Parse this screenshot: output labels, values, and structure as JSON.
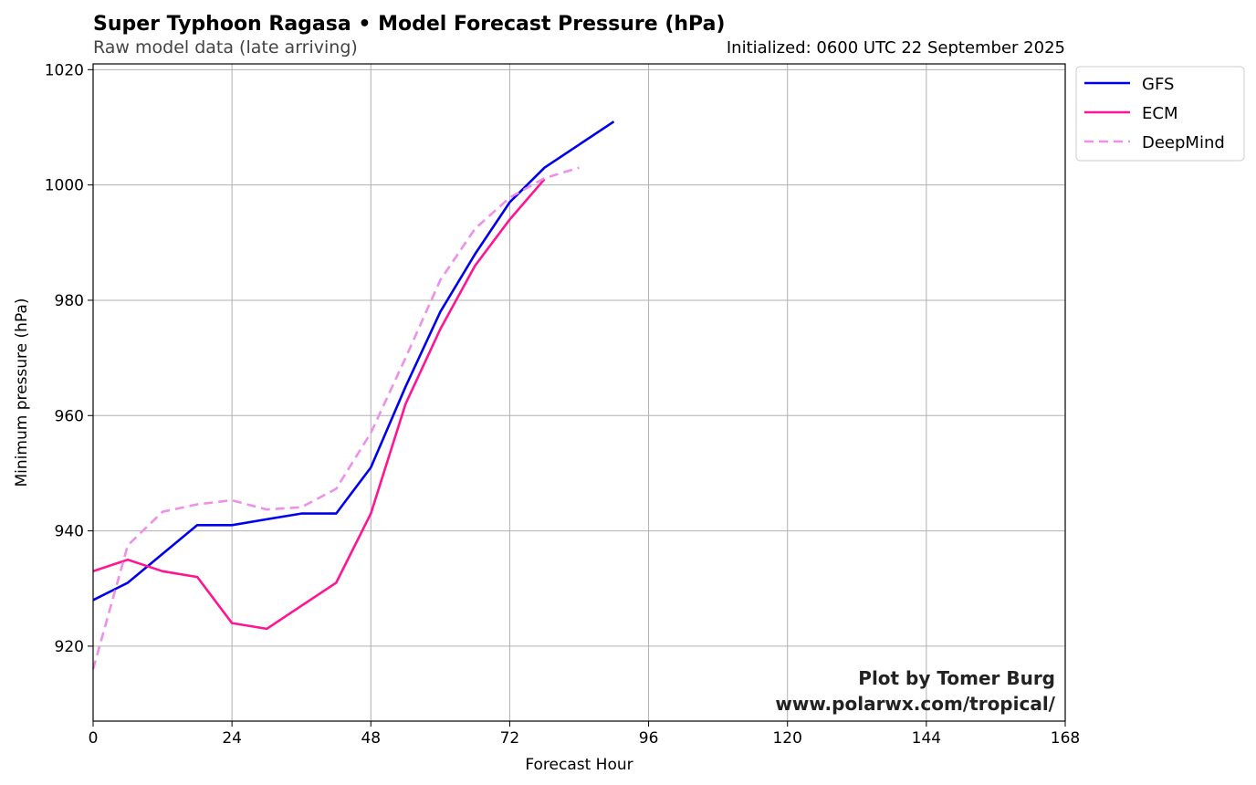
{
  "chart_data": {
    "type": "line",
    "title": "Super Typhoon Ragasa • Model Forecast Pressure (hPa)",
    "subtitle": "Raw model data (late arriving)",
    "init_text": "Initialized: 0600 UTC 22 September 2025",
    "xlabel": "Forecast Hour",
    "ylabel": "Minimum pressure (hPa)",
    "xlim": [
      0,
      168
    ],
    "ylim": [
      907,
      1021
    ],
    "xticks": [
      0,
      24,
      48,
      72,
      96,
      120,
      144,
      168
    ],
    "yticks": [
      920,
      940,
      960,
      980,
      1000,
      1020
    ],
    "grid": true,
    "legend_position": "outside-top-right",
    "credit_lines": [
      "Plot by Tomer Burg",
      "www.polarwx.com/tropical/"
    ],
    "series": [
      {
        "name": "GFS",
        "color": "#0000ee",
        "dash": "solid",
        "x": [
          0,
          6,
          12,
          18,
          24,
          30,
          36,
          42,
          48,
          54,
          60,
          66,
          72,
          78,
          84,
          90
        ],
        "y": [
          928,
          931,
          936,
          941,
          941,
          942,
          943,
          943,
          951,
          965,
          978,
          988,
          997,
          1003,
          1007,
          1011
        ]
      },
      {
        "name": "ECM",
        "color": "#ff1493",
        "dash": "solid",
        "x": [
          0,
          6,
          12,
          18,
          24,
          30,
          36,
          42,
          48,
          54,
          60,
          66,
          72,
          78
        ],
        "y": [
          933,
          935,
          933,
          932,
          924,
          923,
          927,
          931,
          943,
          962,
          975,
          986,
          994,
          1001
        ]
      },
      {
        "name": "DeepMind",
        "color": "#ee90e8",
        "dash": "dashed",
        "x": [
          0,
          6,
          12,
          18,
          24,
          30,
          36,
          42,
          48,
          54,
          60,
          66,
          72,
          78,
          84
        ],
        "y": [
          916,
          937.5,
          943.3,
          944.6,
          945.3,
          943.7,
          944.1,
          947.3,
          957,
          970,
          983.5,
          992.4,
          997.8,
          1001.2,
          1003
        ]
      }
    ]
  }
}
